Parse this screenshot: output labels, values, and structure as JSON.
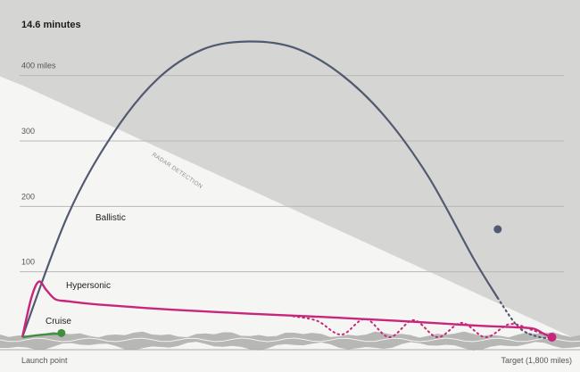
{
  "title": "14.6 minutes",
  "annotations": {
    "radar": "RADAR DETECTION",
    "launch": "Launch point",
    "target": "Target (1,800 miles)"
  },
  "colors": {
    "ballistic": "#525a72",
    "hypersonic": "#c8267a",
    "cruise": "#3f8f3f",
    "radar_zone": "#d5d5d3",
    "light_zone": "#f5f5f3",
    "gridline": "#b9b9b7"
  },
  "chart_data": {
    "type": "line",
    "title": "14.6 minutes",
    "xlabel": "",
    "ylabel": "",
    "xlim": [
      0,
      1800
    ],
    "ylim": [
      0,
      450
    ],
    "x_tick_labels": [
      "Launch point",
      "Target (1,800 miles)"
    ],
    "y_ticks": [
      {
        "value": 100,
        "label": "100"
      },
      {
        "value": 200,
        "label": "200"
      },
      {
        "value": 300,
        "label": "300"
      },
      {
        "value": 400,
        "label": "400 miles"
      }
    ],
    "grid": true,
    "series": [
      {
        "name": "Ballistic",
        "style": "solid-then-dotted",
        "x": [
          0,
          150,
          300,
          450,
          600,
          750,
          900,
          1050,
          1200,
          1350,
          1500,
          1580,
          1650,
          1720,
          1760
        ],
        "y": [
          0,
          185,
          310,
          395,
          440,
          452,
          443,
          405,
          340,
          245,
          120,
          60,
          15,
          0,
          0
        ],
        "marker_point": {
          "x": 1580,
          "y": 165
        }
      },
      {
        "name": "Hypersonic",
        "style": "solid",
        "x": [
          0,
          30,
          55,
          80,
          110,
          150,
          250,
          500,
          750,
          1000,
          1250,
          1500,
          1650,
          1700,
          1730,
          1760
        ],
        "y": [
          0,
          60,
          85,
          72,
          58,
          55,
          50,
          42,
          36,
          31,
          25,
          18,
          15,
          13,
          6,
          0
        ],
        "alternate": {
          "style": "dotted",
          "x": [
            900,
            980,
            1060,
            1140,
            1220,
            1300,
            1380,
            1460,
            1540,
            1620,
            1700,
            1760
          ],
          "y": [
            32,
            25,
            4,
            28,
            0,
            26,
            0,
            22,
            0,
            20,
            10,
            0
          ]
        }
      },
      {
        "name": "Cruise",
        "style": "solid",
        "x": [
          0,
          50,
          100,
          130
        ],
        "y": [
          0,
          3,
          5,
          5
        ]
      }
    ],
    "radar_detection": {
      "from": {
        "x": 0,
        "y": 385
      },
      "to": {
        "x": 1800,
        "y": 0
      }
    }
  }
}
